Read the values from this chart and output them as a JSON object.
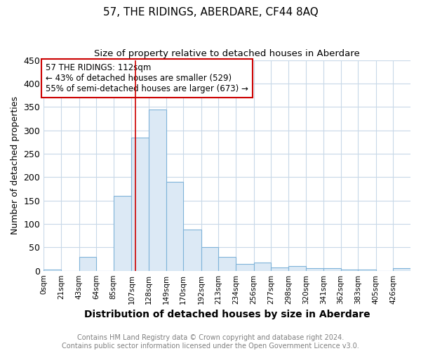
{
  "title": "57, THE RIDINGS, ABERDARE, CF44 8AQ",
  "subtitle": "Size of property relative to detached houses in Aberdare",
  "xlabel": "Distribution of detached houses by size in Aberdare",
  "ylabel": "Number of detached properties",
  "bin_edges": [
    0,
    21,
    43,
    64,
    85,
    107,
    128,
    149,
    170,
    192,
    213,
    234,
    256,
    277,
    298,
    320,
    341,
    362,
    383,
    405,
    426,
    447
  ],
  "bar_heights": [
    3,
    0,
    30,
    0,
    160,
    285,
    345,
    190,
    88,
    50,
    30,
    15,
    18,
    7,
    10,
    5,
    5,
    2,
    2,
    0,
    5
  ],
  "bar_color": "#dce9f5",
  "bar_edge_color": "#7fb3d9",
  "vline_x": 112,
  "vline_color": "#cc0000",
  "ylim": [
    0,
    450
  ],
  "annotation_text": "57 THE RIDINGS: 112sqm\n← 43% of detached houses are smaller (529)\n55% of semi-detached houses are larger (673) →",
  "annotation_box_color": "white",
  "annotation_box_edge_color": "#cc0000",
  "tick_labels": [
    "0sqm",
    "21sqm",
    "43sqm",
    "64sqm",
    "85sqm",
    "107sqm",
    "128sqm",
    "149sqm",
    "170sqm",
    "192sqm",
    "213sqm",
    "234sqm",
    "256sqm",
    "277sqm",
    "298sqm",
    "320sqm",
    "341sqm",
    "362sqm",
    "383sqm",
    "405sqm",
    "426sqm"
  ],
  "footnote": "Contains HM Land Registry data © Crown copyright and database right 2024.\nContains public sector information licensed under the Open Government Licence v3.0.",
  "background_color": "#ffffff",
  "plot_bg_color": "#ffffff",
  "grid_color": "#c8d8e8",
  "title_fontsize": 11,
  "subtitle_fontsize": 9.5,
  "xlabel_fontsize": 10,
  "ylabel_fontsize": 9,
  "tick_fontsize": 7.5,
  "footnote_fontsize": 7,
  "annotation_fontsize": 8.5
}
